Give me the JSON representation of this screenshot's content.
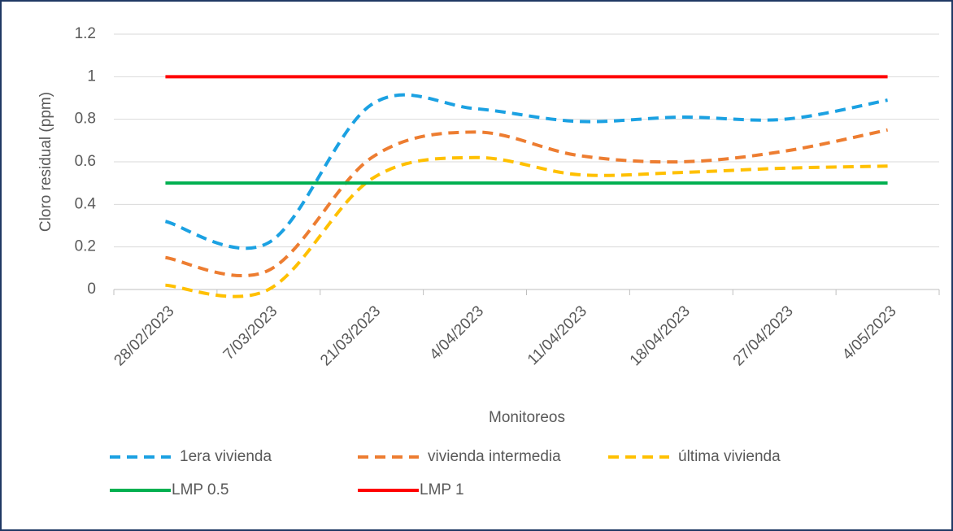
{
  "chart_data": {
    "type": "line",
    "smooth": true,
    "x_label": "Monitoreos",
    "y_label": "Cloro residual (ppm)",
    "categories": [
      "28/02/2023",
      "7/03/2023",
      "21/03/2023",
      "4/04/2023",
      "11/04/2023",
      "18/04/2023",
      "27/04/2023",
      "4/05/2023"
    ],
    "series": [
      {
        "name": "1era vivienda",
        "color": "#1ba1e2",
        "dashed": true,
        "values": [
          0.32,
          0.22,
          0.87,
          0.85,
          0.79,
          0.81,
          0.8,
          0.89
        ]
      },
      {
        "name": "vivienda intermedia",
        "color": "#ed7d31",
        "dashed": true,
        "values": [
          0.15,
          0.09,
          0.62,
          0.74,
          0.63,
          0.6,
          0.65,
          0.75
        ]
      },
      {
        "name": "última vivienda",
        "color": "#ffc000",
        "dashed": true,
        "values": [
          0.02,
          0.0,
          0.52,
          0.62,
          0.54,
          0.55,
          0.57,
          0.58
        ]
      },
      {
        "name": "LMP 0.5",
        "color": "#00b050",
        "dashed": false,
        "values": [
          0.5,
          0.5,
          0.5,
          0.5,
          0.5,
          0.5,
          0.5,
          0.5
        ]
      },
      {
        "name": "LMP 1",
        "color": "#ff0000",
        "dashed": false,
        "values": [
          1,
          1,
          1,
          1,
          1,
          1,
          1,
          1
        ]
      }
    ],
    "ylim": [
      0,
      1.2
    ],
    "yticks": [
      0,
      0.2,
      0.4,
      0.6,
      0.8,
      1,
      1.2
    ],
    "grid": true,
    "legend": "bottom"
  }
}
